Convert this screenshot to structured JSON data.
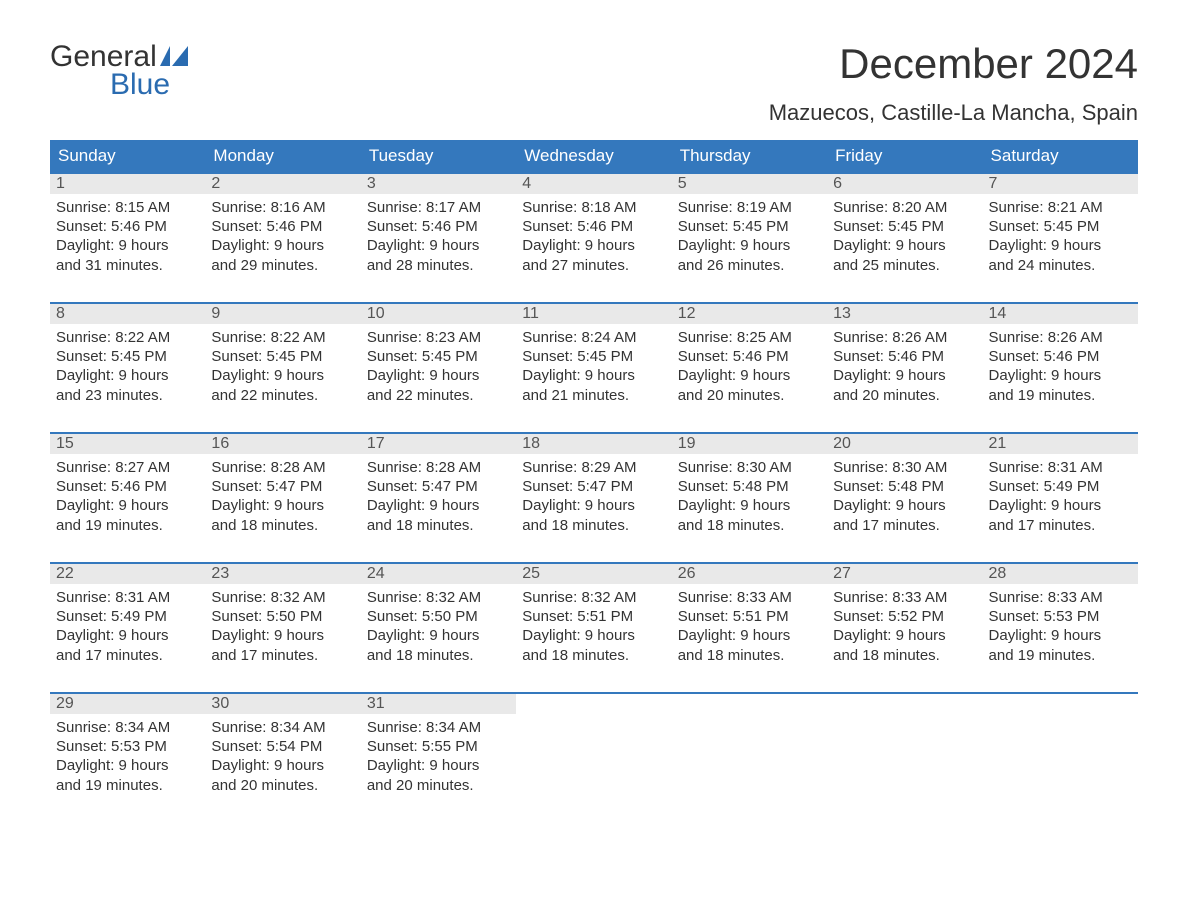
{
  "logo": {
    "line1": "General",
    "line2": "Blue"
  },
  "title": "December 2024",
  "location": "Mazuecos, Castille-La Mancha, Spain",
  "colors": {
    "header_bg": "#3478bd",
    "header_text": "#ffffff",
    "daynum_bg": "#e9e9e9",
    "rule": "#3478bd",
    "logo_accent": "#2a6bb0",
    "body_text": "#333333",
    "page_bg": "#ffffff"
  },
  "typography": {
    "title_fontsize_pt": 32,
    "location_fontsize_pt": 17,
    "dow_fontsize_pt": 13,
    "body_fontsize_pt": 11
  },
  "layout": {
    "columns": 7,
    "rows": 5
  },
  "days_of_week": [
    "Sunday",
    "Monday",
    "Tuesday",
    "Wednesday",
    "Thursday",
    "Friday",
    "Saturday"
  ],
  "weeks": [
    [
      {
        "n": "1",
        "sunrise": "Sunrise: 8:15 AM",
        "sunset": "Sunset: 5:46 PM",
        "dl1": "Daylight: 9 hours",
        "dl2": "and 31 minutes."
      },
      {
        "n": "2",
        "sunrise": "Sunrise: 8:16 AM",
        "sunset": "Sunset: 5:46 PM",
        "dl1": "Daylight: 9 hours",
        "dl2": "and 29 minutes."
      },
      {
        "n": "3",
        "sunrise": "Sunrise: 8:17 AM",
        "sunset": "Sunset: 5:46 PM",
        "dl1": "Daylight: 9 hours",
        "dl2": "and 28 minutes."
      },
      {
        "n": "4",
        "sunrise": "Sunrise: 8:18 AM",
        "sunset": "Sunset: 5:46 PM",
        "dl1": "Daylight: 9 hours",
        "dl2": "and 27 minutes."
      },
      {
        "n": "5",
        "sunrise": "Sunrise: 8:19 AM",
        "sunset": "Sunset: 5:45 PM",
        "dl1": "Daylight: 9 hours",
        "dl2": "and 26 minutes."
      },
      {
        "n": "6",
        "sunrise": "Sunrise: 8:20 AM",
        "sunset": "Sunset: 5:45 PM",
        "dl1": "Daylight: 9 hours",
        "dl2": "and 25 minutes."
      },
      {
        "n": "7",
        "sunrise": "Sunrise: 8:21 AM",
        "sunset": "Sunset: 5:45 PM",
        "dl1": "Daylight: 9 hours",
        "dl2": "and 24 minutes."
      }
    ],
    [
      {
        "n": "8",
        "sunrise": "Sunrise: 8:22 AM",
        "sunset": "Sunset: 5:45 PM",
        "dl1": "Daylight: 9 hours",
        "dl2": "and 23 minutes."
      },
      {
        "n": "9",
        "sunrise": "Sunrise: 8:22 AM",
        "sunset": "Sunset: 5:45 PM",
        "dl1": "Daylight: 9 hours",
        "dl2": "and 22 minutes."
      },
      {
        "n": "10",
        "sunrise": "Sunrise: 8:23 AM",
        "sunset": "Sunset: 5:45 PM",
        "dl1": "Daylight: 9 hours",
        "dl2": "and 22 minutes."
      },
      {
        "n": "11",
        "sunrise": "Sunrise: 8:24 AM",
        "sunset": "Sunset: 5:45 PM",
        "dl1": "Daylight: 9 hours",
        "dl2": "and 21 minutes."
      },
      {
        "n": "12",
        "sunrise": "Sunrise: 8:25 AM",
        "sunset": "Sunset: 5:46 PM",
        "dl1": "Daylight: 9 hours",
        "dl2": "and 20 minutes."
      },
      {
        "n": "13",
        "sunrise": "Sunrise: 8:26 AM",
        "sunset": "Sunset: 5:46 PM",
        "dl1": "Daylight: 9 hours",
        "dl2": "and 20 minutes."
      },
      {
        "n": "14",
        "sunrise": "Sunrise: 8:26 AM",
        "sunset": "Sunset: 5:46 PM",
        "dl1": "Daylight: 9 hours",
        "dl2": "and 19 minutes."
      }
    ],
    [
      {
        "n": "15",
        "sunrise": "Sunrise: 8:27 AM",
        "sunset": "Sunset: 5:46 PM",
        "dl1": "Daylight: 9 hours",
        "dl2": "and 19 minutes."
      },
      {
        "n": "16",
        "sunrise": "Sunrise: 8:28 AM",
        "sunset": "Sunset: 5:47 PM",
        "dl1": "Daylight: 9 hours",
        "dl2": "and 18 minutes."
      },
      {
        "n": "17",
        "sunrise": "Sunrise: 8:28 AM",
        "sunset": "Sunset: 5:47 PM",
        "dl1": "Daylight: 9 hours",
        "dl2": "and 18 minutes."
      },
      {
        "n": "18",
        "sunrise": "Sunrise: 8:29 AM",
        "sunset": "Sunset: 5:47 PM",
        "dl1": "Daylight: 9 hours",
        "dl2": "and 18 minutes."
      },
      {
        "n": "19",
        "sunrise": "Sunrise: 8:30 AM",
        "sunset": "Sunset: 5:48 PM",
        "dl1": "Daylight: 9 hours",
        "dl2": "and 18 minutes."
      },
      {
        "n": "20",
        "sunrise": "Sunrise: 8:30 AM",
        "sunset": "Sunset: 5:48 PM",
        "dl1": "Daylight: 9 hours",
        "dl2": "and 17 minutes."
      },
      {
        "n": "21",
        "sunrise": "Sunrise: 8:31 AM",
        "sunset": "Sunset: 5:49 PM",
        "dl1": "Daylight: 9 hours",
        "dl2": "and 17 minutes."
      }
    ],
    [
      {
        "n": "22",
        "sunrise": "Sunrise: 8:31 AM",
        "sunset": "Sunset: 5:49 PM",
        "dl1": "Daylight: 9 hours",
        "dl2": "and 17 minutes."
      },
      {
        "n": "23",
        "sunrise": "Sunrise: 8:32 AM",
        "sunset": "Sunset: 5:50 PM",
        "dl1": "Daylight: 9 hours",
        "dl2": "and 17 minutes."
      },
      {
        "n": "24",
        "sunrise": "Sunrise: 8:32 AM",
        "sunset": "Sunset: 5:50 PM",
        "dl1": "Daylight: 9 hours",
        "dl2": "and 18 minutes."
      },
      {
        "n": "25",
        "sunrise": "Sunrise: 8:32 AM",
        "sunset": "Sunset: 5:51 PM",
        "dl1": "Daylight: 9 hours",
        "dl2": "and 18 minutes."
      },
      {
        "n": "26",
        "sunrise": "Sunrise: 8:33 AM",
        "sunset": "Sunset: 5:51 PM",
        "dl1": "Daylight: 9 hours",
        "dl2": "and 18 minutes."
      },
      {
        "n": "27",
        "sunrise": "Sunrise: 8:33 AM",
        "sunset": "Sunset: 5:52 PM",
        "dl1": "Daylight: 9 hours",
        "dl2": "and 18 minutes."
      },
      {
        "n": "28",
        "sunrise": "Sunrise: 8:33 AM",
        "sunset": "Sunset: 5:53 PM",
        "dl1": "Daylight: 9 hours",
        "dl2": "and 19 minutes."
      }
    ],
    [
      {
        "n": "29",
        "sunrise": "Sunrise: 8:34 AM",
        "sunset": "Sunset: 5:53 PM",
        "dl1": "Daylight: 9 hours",
        "dl2": "and 19 minutes."
      },
      {
        "n": "30",
        "sunrise": "Sunrise: 8:34 AM",
        "sunset": "Sunset: 5:54 PM",
        "dl1": "Daylight: 9 hours",
        "dl2": "and 20 minutes."
      },
      {
        "n": "31",
        "sunrise": "Sunrise: 8:34 AM",
        "sunset": "Sunset: 5:55 PM",
        "dl1": "Daylight: 9 hours",
        "dl2": "and 20 minutes."
      },
      null,
      null,
      null,
      null
    ]
  ]
}
